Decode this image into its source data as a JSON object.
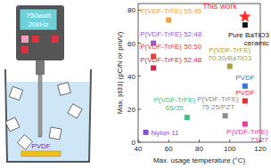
{
  "chart_data": {
    "type": "scatter",
    "xlabel": "Max. usage temperature (°C)",
    "ylabel": "Max. |d31| (pC/N or pm/V)",
    "xlim": [
      40,
      120
    ],
    "ylim": [
      0,
      84
    ],
    "xticks": [
      40,
      60,
      80,
      100,
      120
    ],
    "yticks": [
      0,
      20,
      40,
      60,
      80
    ],
    "grid": false,
    "points": [
      {
        "label": [
          "P(VDF-TrFE) 55:45"
        ],
        "color": "#f0a040",
        "marker": "square",
        "x": 60,
        "y": 74
      },
      {
        "label": [
          "P(VDF-TrFE) 52:48"
        ],
        "color": "#9b59d0",
        "marker": "square",
        "x": 50,
        "y": 60
      },
      {
        "label": [
          "P(VDF-TrFE) 50:50"
        ],
        "color": "#e8403a",
        "marker": "square",
        "x": 50,
        "y": 52
      },
      {
        "label": [
          "P(VDF-TrFE) 52:48"
        ],
        "color": "#d02a4a",
        "marker": "square",
        "x": 50,
        "y": 45
      },
      {
        "label": [
          "P(VDF-TrFE)",
          "70:30/BaTiO3"
        ],
        "color": "#a8a040",
        "marker": "square",
        "x": 100,
        "y": 46
      },
      {
        "label": [
          "Pure BaTiO3",
          "ceramic"
        ],
        "color": "#111111",
        "marker": "square",
        "x": 110,
        "y": 71
      },
      {
        "label": [
          "This work"
        ],
        "color": "#ff2a2a",
        "marker": "star",
        "x": 110,
        "y": 76
      },
      {
        "label": [
          "PVDF"
        ],
        "color": "#3a78d8",
        "marker": "square",
        "x": 110,
        "y": 34
      },
      {
        "label": [
          "PVDF"
        ],
        "color": "#e03030",
        "marker": "square",
        "x": 110,
        "y": 25
      },
      {
        "label": [
          "P(VDF-TrFE)",
          "75:25/PZT"
        ],
        "color": "#8a8a8a",
        "marker": "square",
        "x": 97,
        "y": 16
      },
      {
        "label": [
          "P(VDF-TrFE)",
          "65/35"
        ],
        "color": "#40c080",
        "marker": "square",
        "x": 72,
        "y": 15
      },
      {
        "label": [
          "P(VDF-TrFE)",
          "73/27"
        ],
        "color": "#e040a0",
        "marker": "square",
        "x": 110,
        "y": 11
      },
      {
        "label": [
          "Nylon 11"
        ],
        "color": "#8a4ad8",
        "marker": "square",
        "x": 45,
        "y": 6
      }
    ]
  },
  "illustration": {
    "display": [
      "750watt",
      "20kHz"
    ],
    "sample": "PVDF"
  }
}
